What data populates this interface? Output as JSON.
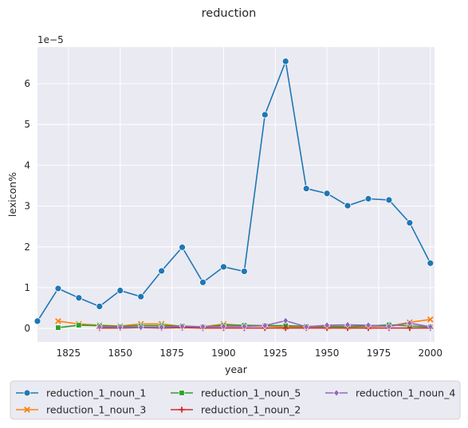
{
  "chart_data": {
    "type": "line",
    "title": "reduction",
    "xlabel": "year",
    "ylabel": "lexicon%",
    "offset_label": "1e−5",
    "xlim": [
      1810,
      2002
    ],
    "ylim": [
      -0.33,
      6.9
    ],
    "x_ticks": [
      "1825",
      "1850",
      "1875",
      "1900",
      "1925",
      "1950",
      "1975",
      "2000"
    ],
    "y_ticks": [
      "0",
      "1",
      "2",
      "3",
      "4",
      "5",
      "6"
    ],
    "grid": true,
    "legend_position": "below",
    "series": [
      {
        "name": "reduction_1_noun_1",
        "color": "#1f77b4",
        "marker": "circle",
        "x": [
          1810,
          1820,
          1830,
          1840,
          1850,
          1860,
          1870,
          1880,
          1890,
          1900,
          1910,
          1920,
          1930,
          1940,
          1950,
          1960,
          1970,
          1980,
          1990,
          2000
        ],
        "y": [
          0.18,
          0.98,
          0.75,
          0.54,
          0.93,
          0.78,
          1.41,
          1.99,
          1.13,
          1.51,
          1.4,
          5.24,
          6.55,
          3.43,
          3.31,
          3.01,
          3.18,
          3.15,
          2.59,
          1.6
        ]
      },
      {
        "name": "reduction_1_noun_3",
        "color": "#ff7f0e",
        "marker": "x",
        "x": [
          1820,
          1830,
          1840,
          1850,
          1860,
          1870,
          1880,
          1890,
          1900,
          1910,
          1920,
          1930,
          1940,
          1950,
          1960,
          1970,
          1980,
          1990,
          2000
        ],
        "y": [
          0.18,
          0.11,
          0.08,
          0.06,
          0.11,
          0.11,
          0.05,
          0.04,
          0.11,
          0.07,
          0.06,
          0.04,
          0.04,
          0.04,
          0.04,
          0.05,
          0.06,
          0.15,
          0.22
        ]
      },
      {
        "name": "reduction_1_noun_5",
        "color": "#2ca02c",
        "marker": "square",
        "x": [
          1820,
          1830,
          1840,
          1850,
          1860,
          1870,
          1880,
          1890,
          1900,
          1910,
          1920,
          1930,
          1940,
          1950,
          1960,
          1970,
          1980,
          1990,
          2000
        ],
        "y": [
          0.02,
          0.08,
          0.07,
          0.05,
          0.07,
          0.07,
          0.06,
          0.04,
          0.08,
          0.08,
          0.07,
          0.07,
          0.05,
          0.05,
          0.05,
          0.06,
          0.09,
          0.06,
          0.04
        ]
      },
      {
        "name": "reduction_1_noun_2",
        "color": "#d62728",
        "marker": "plus",
        "x": [
          1840,
          1850,
          1860,
          1870,
          1880,
          1890,
          1900,
          1910,
          1920,
          1930,
          1940,
          1950,
          1960,
          1970,
          1980,
          1990,
          2000
        ],
        "y": [
          0.01,
          0.01,
          0.02,
          0.01,
          0.02,
          0.01,
          0.01,
          0.01,
          0.01,
          0.01,
          0.01,
          0.01,
          0.01,
          0.01,
          0.01,
          0.01,
          0.01
        ]
      },
      {
        "name": "reduction_1_noun_4",
        "color": "#9467bd",
        "marker": "diamond",
        "x": [
          1840,
          1850,
          1860,
          1870,
          1880,
          1890,
          1900,
          1910,
          1920,
          1930,
          1940,
          1950,
          1960,
          1970,
          1980,
          1990,
          2000
        ],
        "y": [
          0.04,
          0.03,
          0.03,
          0.03,
          0.05,
          0.04,
          0.05,
          0.05,
          0.07,
          0.19,
          0.04,
          0.08,
          0.09,
          0.08,
          0.05,
          0.13,
          0.04
        ]
      }
    ]
  }
}
